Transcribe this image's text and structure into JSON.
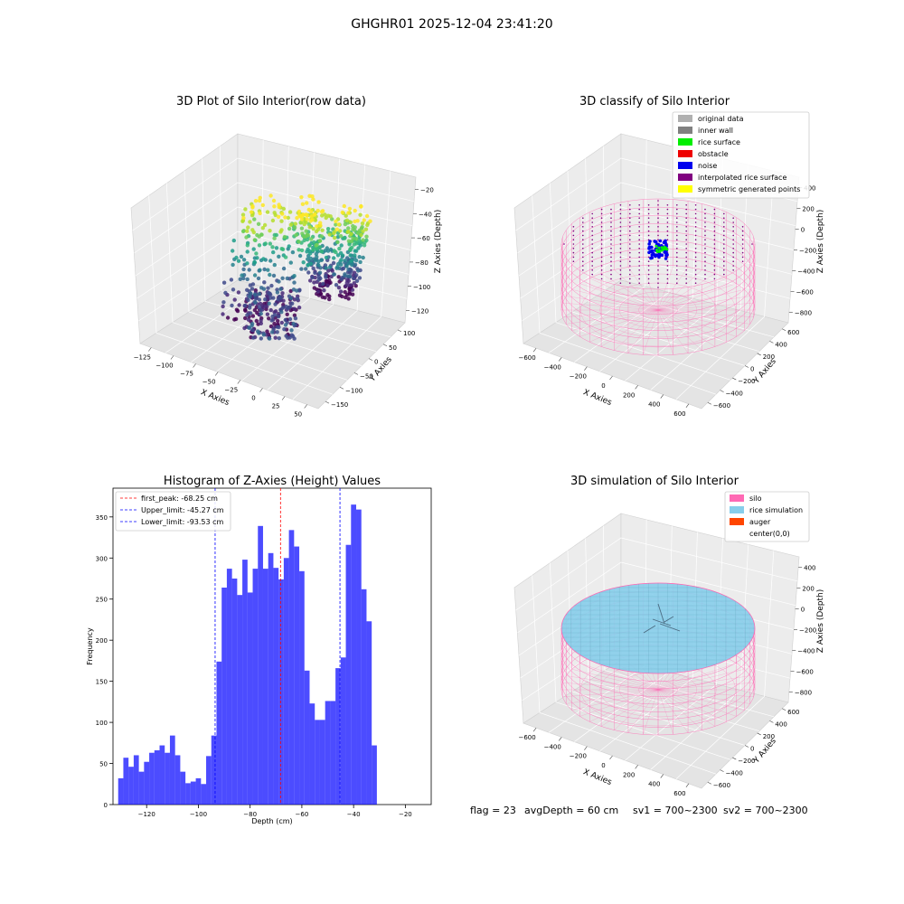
{
  "figure_title": "GHGHR01 2025-12-04 23:41:20",
  "footer": {
    "flag": "flag = 23",
    "avg_depth": "avgDepth = 60 cm",
    "sv1": "sv1 = 700~2300",
    "sv2": "sv2 = 700~2300"
  },
  "colors": {
    "original_data": "#b0b0b0",
    "inner_wall": "#808080",
    "rice_surface": "#00ee00",
    "obstacle": "#ee0000",
    "noise": "#0000ee",
    "interpolated_rice_surface": "#800080",
    "symmetric_generated_points": "#ffff00",
    "silo": "#ff69b4",
    "rice_simulation": "#87ceeb",
    "auger": "#ff4500",
    "histogram_bar": "#0000ff",
    "first_peak_line": "#ff0000",
    "limit_line": "#0000ff",
    "pane": "#f2f2f2",
    "grid": "#d9d9d9"
  },
  "chart_data": [
    {
      "type": "scatter",
      "projection": "3d",
      "title": "3D Plot of Silo Interior(row data)",
      "xlabel": "X Axies",
      "ylabel": "Y Axies",
      "zlabel": "Z Axies (Depth)",
      "xticks": [
        "−125",
        "−100",
        "−75",
        "−50",
        "−25",
        "0",
        "25",
        "50"
      ],
      "yticks": [
        "−150",
        "−100",
        "−50",
        "0",
        "50",
        "100"
      ],
      "zticks": [
        "−20",
        "−40",
        "−60",
        "−80",
        "−100",
        "−120"
      ],
      "colormap": "viridis",
      "grid": true
    },
    {
      "type": "scatter",
      "projection": "3d",
      "title": "3D classify of Silo Interior",
      "xlabel": "X Axies",
      "ylabel": "Y Axies",
      "zlabel": "Z Axies (Depth)",
      "xticks": [
        "−600",
        "−400",
        "−200",
        "0",
        "200",
        "400",
        "600"
      ],
      "yticks": [
        "−600",
        "−400",
        "−200",
        "0",
        "200",
        "400",
        "600"
      ],
      "zticks": [
        "400",
        "200",
        "0",
        "−200",
        "−400",
        "−600",
        "−800"
      ],
      "legend": [
        "original data",
        "inner wall",
        "rice surface",
        "obstacle",
        "noise",
        "interpolated rice surface",
        "symmetric generated points"
      ],
      "legend_loc": "upper right",
      "grid": true
    },
    {
      "type": "bar",
      "title": "Histogram of Z-Axies (Height) Values",
      "xlabel": "Depth (cm)",
      "ylabel": "Frequency",
      "xlim": [
        -133,
        -10
      ],
      "ylim": [
        0,
        385
      ],
      "xticks": [
        -120,
        -100,
        -80,
        -60,
        -40,
        -20
      ],
      "xtick_labels": [
        "−120",
        "−100",
        "−80",
        "−60",
        "−40",
        "−20"
      ],
      "yticks": [
        0,
        50,
        100,
        150,
        200,
        250,
        300,
        350
      ],
      "bin_start": -131,
      "bin_width": 2,
      "values": [
        32,
        57,
        46,
        60,
        40,
        52,
        63,
        66,
        72,
        63,
        84,
        60,
        40,
        26,
        28,
        32,
        25,
        59,
        84,
        174,
        264,
        287,
        275,
        255,
        298,
        258,
        287,
        339,
        287,
        306,
        288,
        274,
        300,
        334,
        314,
        284,
        163,
        123,
        103,
        103,
        126,
        126,
        166,
        179,
        316,
        365,
        359,
        262,
        223,
        72
      ],
      "vlines": [
        {
          "label": "first_peak: -68.25 cm",
          "x": -68.25,
          "color": "red"
        },
        {
          "label": "Upper_limit: -45.27 cm",
          "x": -45.27,
          "color": "blue"
        },
        {
          "label": "Lower_limit: -93.53 cm",
          "x": -93.53,
          "color": "blue"
        }
      ],
      "legend_loc": "upper left"
    },
    {
      "type": "surface",
      "projection": "3d",
      "title": "3D simulation of Silo Interior",
      "xlabel": "X Axies",
      "ylabel": "Y Axies",
      "zlabel": "Z Axies (Depth)",
      "xticks": [
        "−600",
        "−400",
        "−200",
        "0",
        "200",
        "400",
        "600"
      ],
      "yticks": [
        "−600",
        "−400",
        "−200",
        "0",
        "200",
        "400",
        "600"
      ],
      "zticks": [
        "400",
        "200",
        "0",
        "−200",
        "−400",
        "−600",
        "−800"
      ],
      "legend": [
        "silo",
        "rice simulation",
        "auger",
        "center(0,0)"
      ],
      "legend_loc": "upper right",
      "grid": true
    }
  ]
}
